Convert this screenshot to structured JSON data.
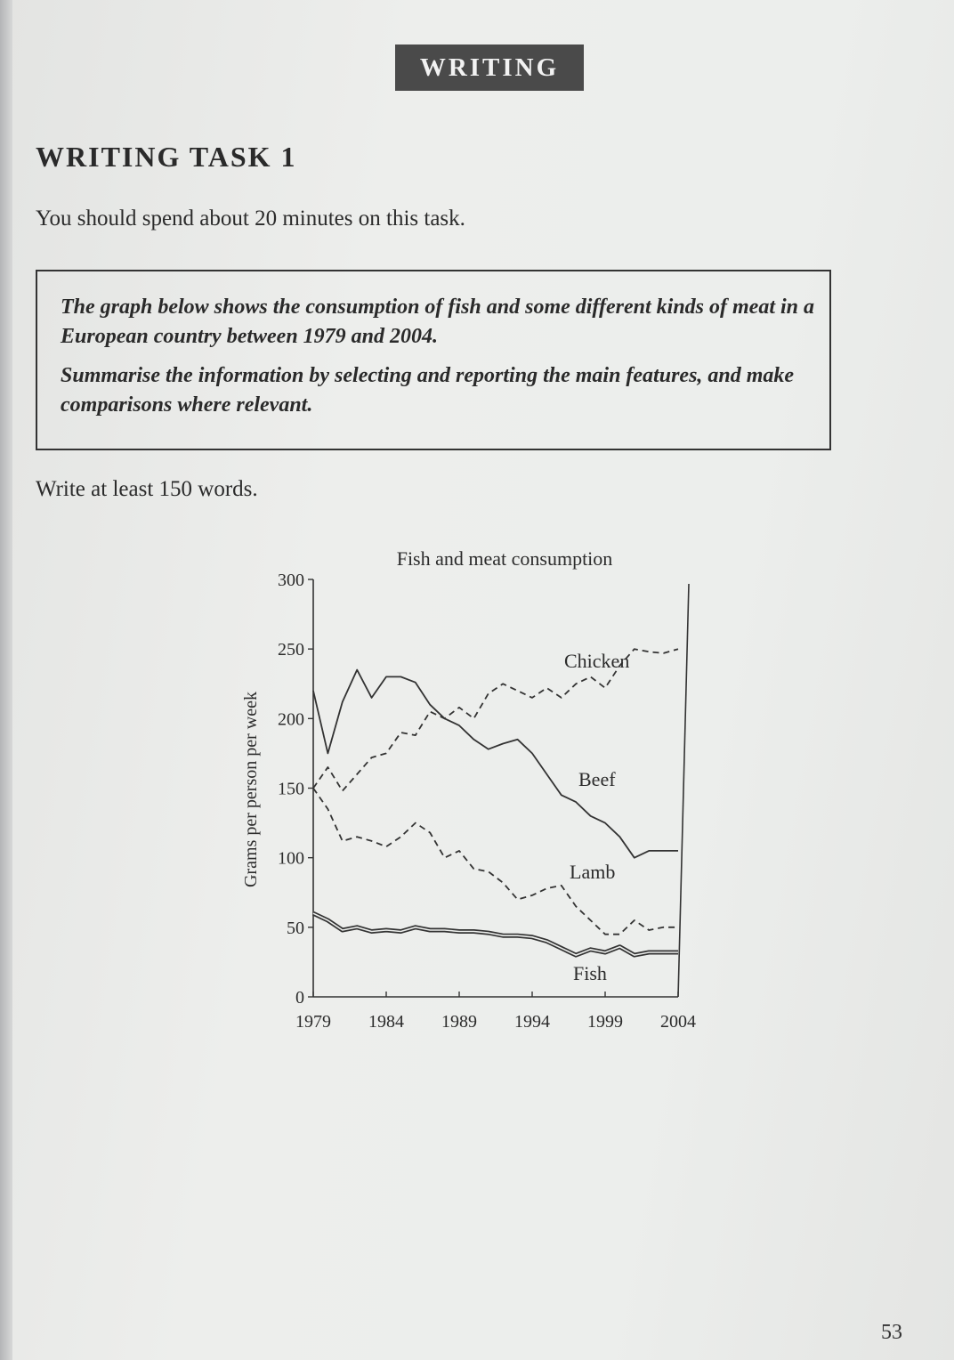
{
  "header": {
    "banner": "WRITING"
  },
  "task": {
    "title": "WRITING TASK 1",
    "instruction": "You should spend about 20 minutes on this task.",
    "prompt_line1": "The graph below shows the consumption of fish and some different kinds of meat in a European country between 1979 and 2004.",
    "prompt_line2": "Summarise the information by selecting and reporting the main features, and make comparisons where relevant.",
    "word_count": "Write at least 150 words."
  },
  "chart_data": {
    "type": "line",
    "title": "Fish and meat consumption",
    "ylabel": "Grams per person per week",
    "xlabel": "",
    "xlim": [
      1979,
      2004
    ],
    "ylim": [
      0,
      300
    ],
    "xticks": [
      "1979",
      "1984",
      "1989",
      "1994",
      "1999",
      "2004"
    ],
    "yticks": [
      "0",
      "50",
      "100",
      "150",
      "200",
      "250",
      "300"
    ],
    "x": [
      1979,
      1980,
      1981,
      1982,
      1983,
      1984,
      1985,
      1986,
      1987,
      1988,
      1989,
      1990,
      1991,
      1992,
      1993,
      1994,
      1995,
      1996,
      1997,
      1998,
      1999,
      2000,
      2001,
      2002,
      2003,
      2004
    ],
    "grid": false,
    "series": [
      {
        "name": "Chicken",
        "style": "dashed",
        "values": [
          150,
          165,
          148,
          160,
          172,
          175,
          190,
          188,
          205,
          200,
          208,
          200,
          218,
          225,
          220,
          215,
          222,
          215,
          225,
          230,
          222,
          238,
          250,
          248,
          247,
          250
        ]
      },
      {
        "name": "Beef",
        "style": "solid",
        "values": [
          220,
          175,
          212,
          235,
          215,
          230,
          230,
          226,
          210,
          200,
          195,
          185,
          178,
          182,
          185,
          175,
          160,
          145,
          140,
          130,
          125,
          115,
          100,
          105,
          105,
          105
        ]
      },
      {
        "name": "Lamb",
        "style": "dashed",
        "values": [
          150,
          135,
          112,
          115,
          112,
          108,
          115,
          125,
          118,
          100,
          105,
          92,
          90,
          82,
          70,
          73,
          78,
          80,
          65,
          55,
          45,
          45,
          55,
          48,
          50,
          50
        ]
      },
      {
        "name": "Fish",
        "style": "double",
        "values": [
          60,
          55,
          48,
          50,
          47,
          48,
          47,
          50,
          48,
          48,
          47,
          47,
          46,
          44,
          44,
          43,
          40,
          35,
          30,
          34,
          32,
          36,
          30,
          32,
          32,
          32
        ]
      }
    ]
  },
  "footer": {
    "page_number": "53"
  }
}
